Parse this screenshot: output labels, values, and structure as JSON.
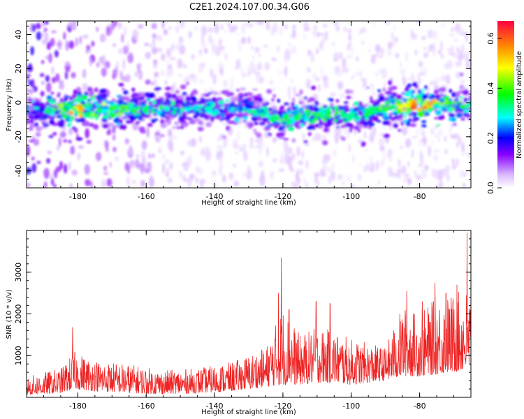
{
  "title": "C2E1.2024.107.00.34.G06",
  "chart_data": [
    {
      "type": "heatmap",
      "xlabel": "Height of straight line (km)",
      "ylabel": "Frequency (Hz)",
      "xlim": [
        -195,
        -65
      ],
      "ylim": [
        -50,
        48
      ],
      "x_ticks": [
        -180,
        -160,
        -140,
        -120,
        -100,
        -80
      ],
      "y_ticks": [
        -40,
        -20,
        0,
        20,
        40
      ],
      "colorbar": {
        "label": "Normalized spectral amplitude",
        "range": [
          0.0,
          0.67
        ],
        "ticks": [
          0.0,
          0.2,
          0.4,
          0.6
        ],
        "colormap": [
          "#ffffff",
          "#d9b8ff",
          "#8800ff",
          "#0000ff",
          "#00ffff",
          "#00ff00",
          "#ffff00",
          "#ff8800",
          "#ff0044"
        ]
      },
      "ridge": {
        "description_points_x": [
          -195,
          -180,
          -160,
          -140,
          -130,
          -120,
          -110,
          -100,
          -90,
          -80,
          -65
        ],
        "center_freq": [
          -4,
          -4,
          -3,
          -3,
          -4,
          -10,
          -6,
          -8,
          -3,
          -1,
          -2
        ],
        "peak_amplitude": [
          0.25,
          0.55,
          0.35,
          0.3,
          0.32,
          0.35,
          0.4,
          0.32,
          0.38,
          0.62,
          0.3
        ]
      }
    },
    {
      "type": "line",
      "xlabel": "Height of straight line (km)",
      "ylabel": "SNR (10 * v/v)",
      "xlim": [
        -195,
        -65
      ],
      "ylim": [
        0,
        4000
      ],
      "x_ticks": [
        -180,
        -160,
        -140,
        -120,
        -100,
        -80
      ],
      "y_ticks": [
        1000,
        2000,
        3000
      ],
      "line_color": "#ee2222",
      "envelope_x": [
        -195,
        -185,
        -181,
        -175,
        -165,
        -155,
        -145,
        -135,
        -125,
        -120,
        -115,
        -110,
        -105,
        -100,
        -95,
        -90,
        -85,
        -80,
        -75,
        -70,
        -66
      ],
      "envelope_upper": [
        500,
        700,
        1100,
        900,
        800,
        650,
        700,
        850,
        1200,
        2200,
        1500,
        1700,
        1600,
        1400,
        1300,
        1200,
        2200,
        2000,
        2400,
        2500,
        2600
      ],
      "envelope_lower": [
        50,
        100,
        200,
        150,
        100,
        80,
        100,
        150,
        250,
        300,
        300,
        350,
        350,
        300,
        350,
        400,
        500,
        500,
        550,
        600,
        650
      ],
      "spikes": [
        [
          -181.5,
          1680
        ],
        [
          -120.5,
          3350
        ],
        [
          -121.3,
          2500
        ],
        [
          -118.2,
          2100
        ],
        [
          -110.3,
          2300
        ],
        [
          -106.2,
          2250
        ],
        [
          -83.8,
          2550
        ],
        [
          -79.2,
          2300
        ],
        [
          -75.5,
          2750
        ],
        [
          -72.3,
          2500
        ],
        [
          -69.1,
          2700
        ],
        [
          -66.1,
          3950
        ]
      ]
    }
  ]
}
